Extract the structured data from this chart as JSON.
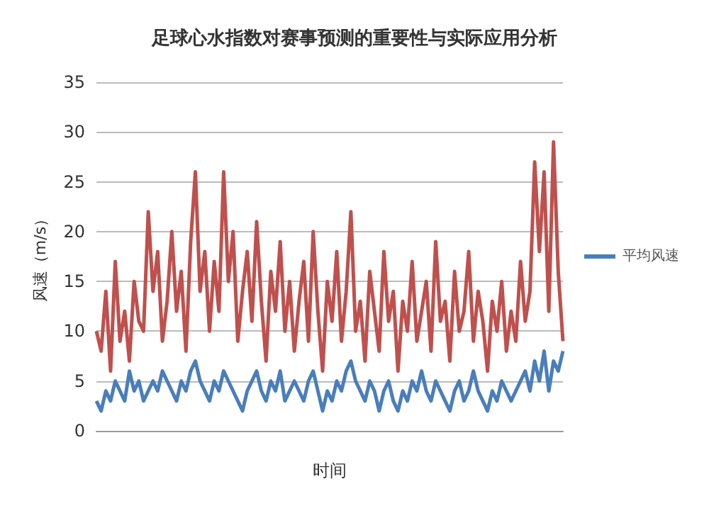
{
  "chart_data": {
    "type": "line",
    "title": "足球心水指数对赛事预测的重要性与实际应用分析",
    "xlabel": "时间",
    "ylabel": "风速（m/s）",
    "categories": [
      null,
      null,
      null,
      null,
      null,
      null,
      null,
      null,
      null,
      null,
      null,
      null,
      null,
      null,
      null,
      null,
      null,
      null,
      null,
      null,
      null,
      null,
      null,
      null,
      null,
      null,
      null,
      null,
      null,
      null,
      null,
      null,
      null,
      null,
      null,
      null,
      null,
      null,
      null,
      null,
      null,
      null,
      null,
      null,
      null,
      null,
      null,
      null,
      null,
      null,
      null,
      null,
      null,
      null,
      null,
      null,
      null,
      null,
      null,
      null,
      null,
      null,
      null,
      null,
      null,
      null,
      null,
      null,
      null,
      null,
      null,
      null,
      null,
      null,
      null,
      null,
      null,
      null,
      null,
      null,
      null,
      null,
      null,
      null,
      null,
      null,
      null,
      null,
      null,
      null,
      null,
      null,
      null,
      null,
      null,
      null,
      null,
      null,
      null,
      null
    ],
    "series": [
      {
        "color": "#c0504d",
        "values": [
          10,
          8,
          14,
          6,
          17,
          9,
          12,
          7,
          15,
          11,
          10,
          22,
          14,
          18,
          9,
          13,
          20,
          12,
          16,
          8,
          19,
          26,
          14,
          18,
          10,
          17,
          12,
          26,
          15,
          20,
          9,
          14,
          18,
          11,
          21,
          13,
          7,
          16,
          12,
          19,
          10,
          15,
          8,
          13,
          17,
          9,
          20,
          12,
          6,
          15,
          11,
          18,
          9,
          14,
          22,
          10,
          13,
          7,
          16,
          12,
          8,
          18,
          11,
          14,
          6,
          13,
          10,
          17,
          9,
          12,
          15,
          8,
          19,
          11,
          13,
          7,
          16,
          10,
          12,
          18,
          9,
          14,
          11,
          6,
          13,
          10,
          15,
          8,
          12,
          9,
          17,
          11,
          14,
          27,
          18,
          26,
          12,
          29,
          16,
          9
        ]
      },
      {
        "name": "平均风速",
        "color": "#4a7ebb",
        "values": [
          3,
          2,
          4,
          3,
          5,
          4,
          3,
          6,
          4,
          5,
          3,
          4,
          5,
          4,
          6,
          5,
          4,
          3,
          5,
          4,
          6,
          7,
          5,
          4,
          3,
          5,
          4,
          6,
          5,
          4,
          3,
          2,
          4,
          5,
          6,
          4,
          3,
          5,
          4,
          6,
          3,
          4,
          5,
          4,
          3,
          5,
          6,
          4,
          2,
          4,
          3,
          5,
          4,
          6,
          7,
          5,
          4,
          3,
          5,
          4,
          2,
          4,
          5,
          3,
          2,
          4,
          3,
          5,
          4,
          6,
          4,
          3,
          5,
          4,
          3,
          2,
          4,
          5,
          3,
          4,
          6,
          4,
          3,
          2,
          4,
          3,
          5,
          4,
          3,
          4,
          5,
          6,
          4,
          7,
          5,
          8,
          4,
          7,
          6,
          8
        ]
      }
    ],
    "ylim": [
      0,
      35
    ],
    "yticks": [
      0,
      5,
      10,
      15,
      20,
      25,
      30,
      35
    ],
    "grid": "y",
    "legend": "right",
    "marker": "none",
    "line_style": "solid"
  }
}
